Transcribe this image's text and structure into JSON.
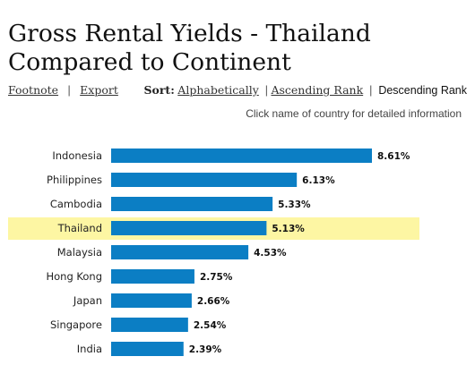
{
  "title_line1": "Gross Rental Yields - Thailand",
  "title_line2": "Compared to Continent",
  "toolbar": {
    "footnote": "Footnote",
    "export": "Export",
    "sort_label": "Sort:",
    "alphabetically": "Alphabetically",
    "ascending": "Ascending Rank",
    "descending": "Descending Rank"
  },
  "hint": "Click name of country for detailed information",
  "colors": {
    "bar": "#0b7ec4",
    "highlight": "#fdf6a3"
  },
  "chart_data": {
    "type": "bar",
    "orientation": "horizontal",
    "categories": [
      "Indonesia",
      "Philippines",
      "Cambodia",
      "Thailand",
      "Malaysia",
      "Hong Kong",
      "Japan",
      "Singapore",
      "India"
    ],
    "values": [
      8.61,
      6.13,
      5.33,
      5.13,
      4.53,
      2.75,
      2.66,
      2.54,
      2.39
    ],
    "value_labels": [
      "8.61%",
      "6.13%",
      "5.33%",
      "5.13%",
      "4.53%",
      "2.75%",
      "2.66%",
      "2.54%",
      "2.39%"
    ],
    "highlight": "Thailand",
    "xlim": [
      0,
      8.61
    ]
  }
}
